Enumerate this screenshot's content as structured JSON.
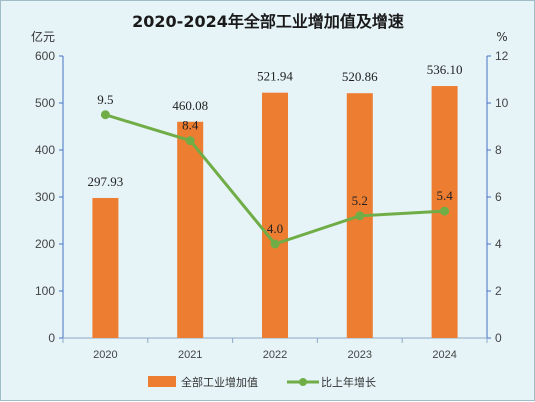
{
  "chart_data": {
    "type": "bar",
    "title": "2020-2024年全部工业增加值及增速",
    "categories": [
      "2020",
      "2021",
      "2022",
      "2023",
      "2024"
    ],
    "left_axis": {
      "unit": "亿元",
      "ylim": [
        0,
        600
      ],
      "ticks": [
        0,
        100,
        200,
        300,
        400,
        500,
        600
      ]
    },
    "right_axis": {
      "unit": "%",
      "ylim": [
        0,
        12
      ],
      "ticks": [
        0,
        2,
        4,
        6,
        8,
        10,
        12
      ]
    },
    "series": [
      {
        "name": "全部工业增加值",
        "type": "bar",
        "axis": "left",
        "color": "#ed7d31",
        "values": [
          297.93,
          460.08,
          521.94,
          520.86,
          536.1
        ],
        "labels": [
          "297.93",
          "460.08",
          "521.94",
          "520.86",
          "536.10"
        ]
      },
      {
        "name": "比上年增长",
        "type": "line",
        "axis": "right",
        "color": "#70ad47",
        "values": [
          9.5,
          8.4,
          4.0,
          5.2,
          5.4
        ],
        "labels": [
          "9.5",
          "8.4",
          "4.0",
          "5.2",
          "5.4"
        ]
      }
    ],
    "grid": false,
    "legend": "bottom"
  }
}
